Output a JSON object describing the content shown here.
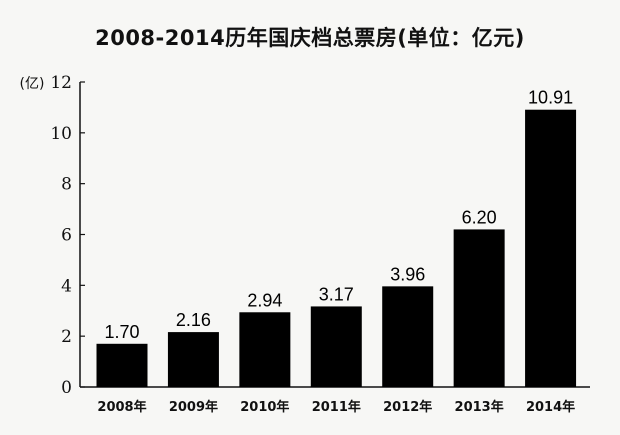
{
  "chart_data": {
    "type": "bar",
    "title": "2008-2014历年国庆档总票房(单位：亿元)",
    "ylabel": "(亿)",
    "categories": [
      "2008年",
      "2009年",
      "2010年",
      "2011年",
      "2012年",
      "2013年",
      "2014年"
    ],
    "values": [
      1.7,
      2.16,
      2.94,
      3.17,
      3.96,
      6.2,
      10.91
    ],
    "value_labels": [
      "1.70",
      "2.16",
      "2.94",
      "3.17",
      "3.96",
      "6.20",
      "10.91"
    ],
    "ylim": [
      0,
      12
    ],
    "yticks": [
      0,
      2,
      4,
      6,
      8,
      10,
      12
    ],
    "grid": false,
    "bar_color": "#000000"
  }
}
